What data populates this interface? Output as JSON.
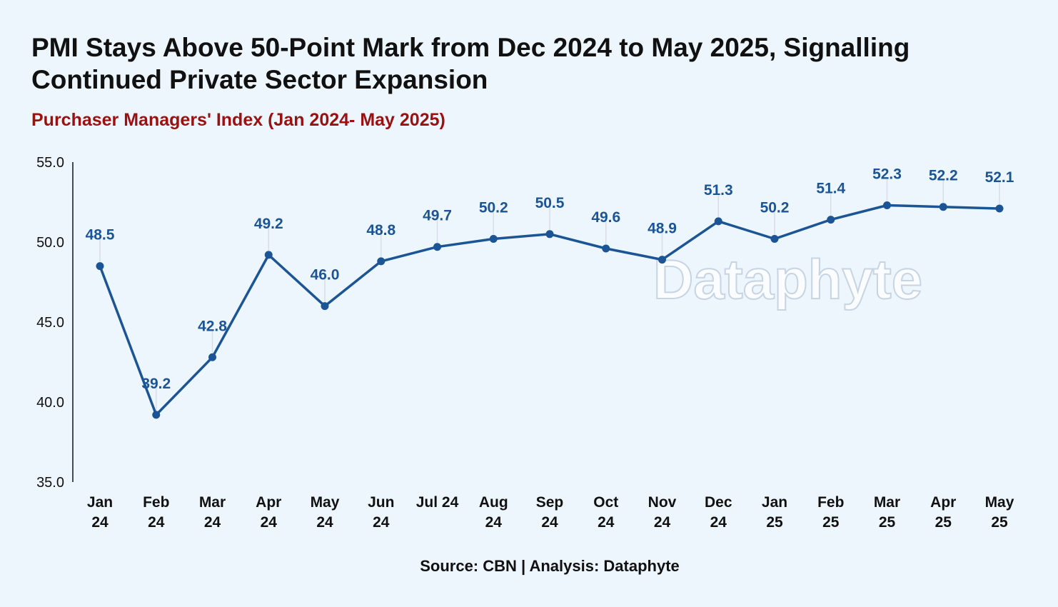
{
  "title": "PMI Stays Above 50-Point Mark from Dec 2024 to May 2025, Signalling Continued Private Sector Expansion",
  "subtitle": "Purchaser Managers' Index (Jan 2024- May 2025)",
  "source": "Source: CBN | Analysis: Dataphyte",
  "watermark": "Dataphyte",
  "colors": {
    "line": "#1b5595",
    "subtitle": "#9b1010",
    "background": "#eef6fd"
  },
  "chart_data": {
    "type": "line",
    "title": "Purchaser Managers' Index (Jan 2024- May 2025)",
    "xlabel": "",
    "ylabel": "",
    "categories": [
      "Jan 24",
      "Feb 24",
      "Mar 24",
      "Apr 24",
      "May 24",
      "Jun 24",
      "Jul 24",
      "Aug 24",
      "Sep 24",
      "Oct 24",
      "Nov 24",
      "Dec 24",
      "Jan 25",
      "Feb 25",
      "Mar 25",
      "Apr 25",
      "May 25"
    ],
    "x_tick_lines": [
      [
        "Jan",
        "24"
      ],
      [
        "Feb",
        "24"
      ],
      [
        "Mar",
        "24"
      ],
      [
        "Apr",
        "24"
      ],
      [
        "May",
        "24"
      ],
      [
        "Jun",
        "24"
      ],
      [
        "Jul 24"
      ],
      [
        "Aug",
        "24"
      ],
      [
        "Sep",
        "24"
      ],
      [
        "Oct",
        "24"
      ],
      [
        "Nov",
        "24"
      ],
      [
        "Dec",
        "24"
      ],
      [
        "Jan",
        "25"
      ],
      [
        "Feb",
        "25"
      ],
      [
        "Mar",
        "25"
      ],
      [
        "Apr",
        "25"
      ],
      [
        "May",
        "25"
      ]
    ],
    "series": [
      {
        "name": "PMI",
        "values": [
          48.5,
          39.2,
          42.8,
          49.2,
          46.0,
          48.8,
          49.7,
          50.2,
          50.5,
          49.6,
          48.9,
          51.3,
          50.2,
          51.4,
          52.3,
          52.2,
          52.1
        ]
      }
    ],
    "data_labels": [
      "48.5",
      "39.2",
      "42.8",
      "49.2",
      "46.0",
      "48.8",
      "49.7",
      "50.2",
      "50.5",
      "49.6",
      "48.9",
      "51.3",
      "50.2",
      "51.4",
      "52.3",
      "52.2",
      "52.1"
    ],
    "ylim": [
      35,
      55
    ],
    "y_ticks": [
      "35.0",
      "40.0",
      "45.0",
      "50.0",
      "55.0"
    ],
    "grid": false,
    "legend": "none"
  }
}
